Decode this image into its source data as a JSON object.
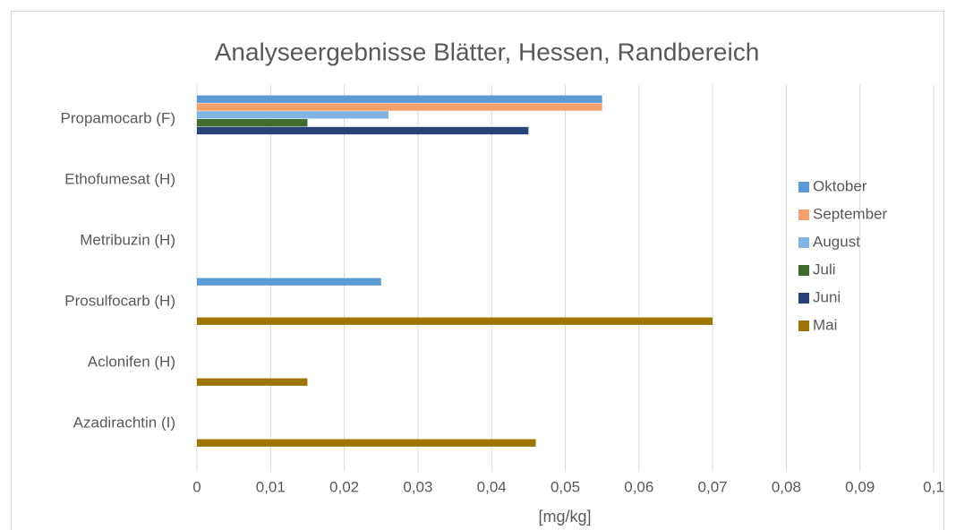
{
  "chart_data": {
    "type": "hbar",
    "title": "Analyseergebnisse Blätter, Hessen, Randbereich",
    "x_label": "[mg/kg]",
    "categories": [
      "Propamocarb (F)",
      "Ethofumesat (H)",
      "Metribuzin (H)",
      "Prosulfocarb (H)",
      "Aclonifen (H)",
      "Azadirachtin (I)"
    ],
    "series": [
      {
        "name": "Oktober",
        "color": "#5b9bd5",
        "values": [
          0.055,
          null,
          null,
          0.025,
          null,
          null
        ]
      },
      {
        "name": "September",
        "color": "#f4a26b",
        "values": [
          0.055,
          null,
          null,
          null,
          null,
          null
        ]
      },
      {
        "name": "August",
        "color": "#82b4e2",
        "values": [
          0.026,
          null,
          null,
          null,
          null,
          null
        ]
      },
      {
        "name": "Juli",
        "color": "#3f6b2c",
        "values": [
          0.015,
          null,
          null,
          null,
          null,
          null
        ]
      },
      {
        "name": "Juni",
        "color": "#264478",
        "values": [
          0.045,
          null,
          null,
          null,
          null,
          null
        ]
      },
      {
        "name": "Mai",
        "color": "#9c7600",
        "values": [
          null,
          null,
          null,
          0.07,
          0.015,
          0.046
        ]
      }
    ],
    "xlim": [
      0,
      0.1
    ],
    "xticks": [
      0,
      {
        "value": 0.01,
        "label": "0,01"
      },
      {
        "value": 0.02,
        "label": "0,02"
      },
      {
        "value": 0.03,
        "label": "0,03"
      },
      {
        "value": 0.04,
        "label": "0,04"
      },
      {
        "value": 0.05,
        "label": "0,05"
      },
      {
        "value": 0.06,
        "label": "0,06"
      },
      {
        "value": 0.07,
        "label": "0,07"
      },
      {
        "value": 0.08,
        "label": "0,08"
      },
      {
        "value": 0.09,
        "label": "0,09"
      },
      {
        "value": 0.1,
        "label": "0,1"
      }
    ],
    "grid": true,
    "legend": "right"
  }
}
